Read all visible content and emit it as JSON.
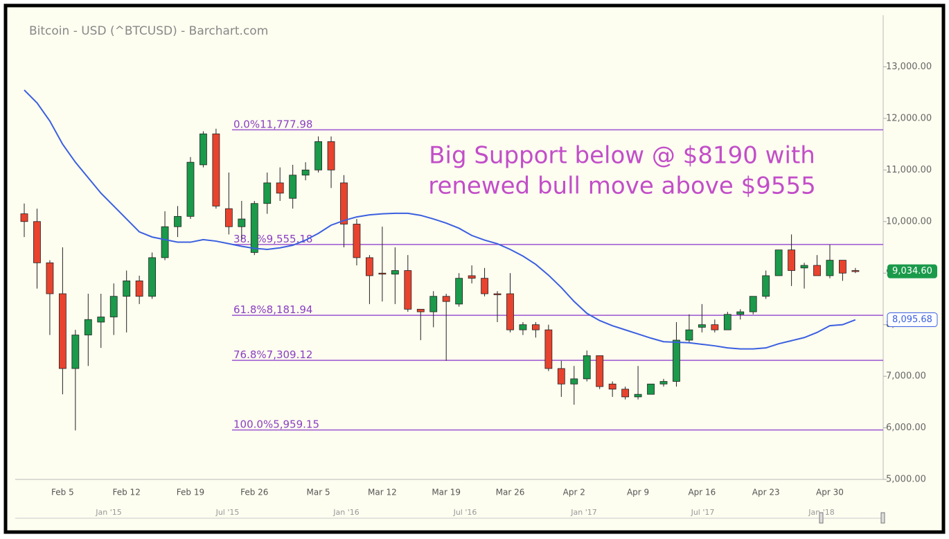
{
  "chart_data": {
    "type": "candlestick",
    "title": "Bitcoin - USD (^BTCUSD) - Barchart.com",
    "annotation": [
      "Big Support below @ $8190 with",
      "renewed bull move above $9555"
    ],
    "categories": [
      null,
      null,
      null,
      "Feb 5",
      null,
      null,
      null,
      null,
      "Feb 12",
      null,
      null,
      null,
      null,
      "Feb 19",
      null,
      null,
      null,
      null,
      "Feb 26",
      null,
      null,
      null,
      null,
      "Mar 5",
      null,
      null,
      null,
      null,
      "Mar 12",
      null,
      null,
      null,
      null,
      "Mar 19",
      null,
      null,
      null,
      null,
      "Mar 26",
      null,
      null,
      null,
      null,
      "Apr 2",
      null,
      null,
      null,
      null,
      "Apr 9",
      null,
      null,
      null,
      null,
      "Apr 16",
      null,
      null,
      null,
      null,
      "Apr 23",
      null,
      null,
      null,
      null,
      "Apr 30",
      null,
      null
    ],
    "open": [
      10150,
      10000,
      9200,
      8600,
      7150,
      7800,
      8050,
      8150,
      8550,
      8850,
      8550,
      9300,
      9900,
      10100,
      11100,
      11700,
      10250,
      9900,
      9400,
      10350,
      10750,
      10450,
      10900,
      11000,
      11550,
      10750,
      9950,
      9300,
      9000,
      8980,
      9050,
      8300,
      8250,
      8550,
      8400,
      8950,
      8900,
      8600,
      8600,
      7900,
      8000,
      7900,
      7150,
      6850,
      6950,
      7400,
      6850,
      6750,
      6600,
      6650,
      6850,
      6900,
      7700,
      7950,
      8000,
      7900,
      8200,
      8250,
      8550,
      8950,
      9450,
      9100,
      9150,
      8950,
      9250,
      9050
    ],
    "high": [
      10350,
      10250,
      9250,
      9500,
      7900,
      8600,
      8600,
      8800,
      9050,
      8950,
      9400,
      10200,
      10300,
      11250,
      11750,
      11800,
      10950,
      10400,
      10400,
      10950,
      11050,
      11100,
      11150,
      11650,
      11650,
      10900,
      10050,
      9350,
      9900,
      9500,
      9350,
      8300,
      8650,
      8600,
      9000,
      9150,
      9100,
      8650,
      9000,
      8050,
      8050,
      8000,
      7300,
      7200,
      7500,
      7400,
      6900,
      6800,
      7200,
      6850,
      6950,
      8050,
      8200,
      8400,
      8100,
      8250,
      8300,
      8550,
      9050,
      9450,
      9750,
      9200,
      9350,
      9550,
      9250,
      9100
    ],
    "low": [
      9700,
      8700,
      7800,
      6650,
      5950,
      7200,
      7550,
      7800,
      7850,
      8400,
      8500,
      9250,
      9700,
      10050,
      11050,
      10250,
      9750,
      9650,
      9350,
      10150,
      10400,
      10250,
      10800,
      10950,
      10650,
      9500,
      9150,
      8400,
      8450,
      8400,
      8250,
      7700,
      7950,
      7300,
      8350,
      8800,
      8550,
      8050,
      7850,
      7800,
      7750,
      7100,
      6600,
      6450,
      6900,
      6750,
      6600,
      6550,
      6550,
      6650,
      6800,
      6800,
      7650,
      7850,
      7850,
      7900,
      8100,
      8200,
      8500,
      8950,
      8750,
      8700,
      8950,
      8900,
      8850,
      9000
    ],
    "close": [
      10000,
      9200,
      8600,
      7150,
      7800,
      8100,
      8150,
      8550,
      8850,
      8550,
      9300,
      9900,
      10100,
      11150,
      11700,
      10300,
      9900,
      10050,
      10350,
      10750,
      10550,
      10900,
      11000,
      11550,
      11000,
      9950,
      9300,
      8950,
      8980,
      9050,
      8300,
      8250,
      8550,
      8450,
      8900,
      8900,
      8600,
      8580,
      7900,
      8000,
      7900,
      7150,
      6850,
      6950,
      7400,
      6800,
      6750,
      6600,
      6650,
      6850,
      6900,
      7700,
      7900,
      8000,
      7900,
      8200,
      8250,
      8550,
      8950,
      9450,
      9050,
      9150,
      8950,
      9250,
      9000,
      9034.6
    ],
    "ma": [
      12550,
      12300,
      11950,
      11500,
      11150,
      10850,
      10550,
      10300,
      10050,
      9800,
      9700,
      9650,
      9600,
      9600,
      9650,
      9620,
      9570,
      9520,
      9480,
      9460,
      9490,
      9540,
      9640,
      9770,
      9930,
      10020,
      10090,
      10130,
      10150,
      10160,
      10160,
      10120,
      10050,
      9970,
      9870,
      9730,
      9640,
      9570,
      9460,
      9330,
      9170,
      8960,
      8720,
      8450,
      8220,
      8080,
      7980,
      7900,
      7820,
      7740,
      7670,
      7660,
      7650,
      7620,
      7590,
      7550,
      7530,
      7530,
      7550,
      7630,
      7690,
      7750,
      7850,
      7980,
      8000,
      8095.68
    ],
    "up_color": "#1a9a4a",
    "down_color": "#e8432e",
    "ma_color": "#3a5fe0",
    "fib_color": "#9a55d0",
    "fib": [
      {
        "label": "0.0%",
        "value": 11777.98,
        "value_label": "11,777.98"
      },
      {
        "label": "38.2%",
        "value": 9555.18,
        "value_label": "9,555.18"
      },
      {
        "label": "61.8%",
        "value": 8181.94,
        "value_label": "8,181.94"
      },
      {
        "label": "76.8%",
        "value": 7309.12,
        "value_label": "7,309.12"
      },
      {
        "label": "100.0%",
        "value": 5959.15,
        "value_label": "5,959.15"
      }
    ],
    "last_price": {
      "value": 9034.6,
      "label": "9,034.60"
    },
    "ma_last": {
      "value": 8095.68,
      "label": "8,095.68"
    },
    "ylim": [
      5000,
      14000
    ],
    "yticks": [
      {
        "value": 5000,
        "label": "5,000.00"
      },
      {
        "value": 6000,
        "label": "6,000.00"
      },
      {
        "value": 7000,
        "label": "7,000.00"
      },
      {
        "value": 8000,
        "label": "8,000.00"
      },
      {
        "value": 9000,
        "label": "9,000.00"
      },
      {
        "value": 10000,
        "label": "10,000.00"
      },
      {
        "value": 11000,
        "label": "11,000.00"
      },
      {
        "value": 12000,
        "label": "12,000.00"
      },
      {
        "value": 13000,
        "label": "13,000.00"
      }
    ],
    "navigator_labels": [
      "Jan '15",
      "Jul '15",
      "Jan '16",
      "Jul '16",
      "Jan '17",
      "Jul '17",
      "Jan '18"
    ]
  }
}
